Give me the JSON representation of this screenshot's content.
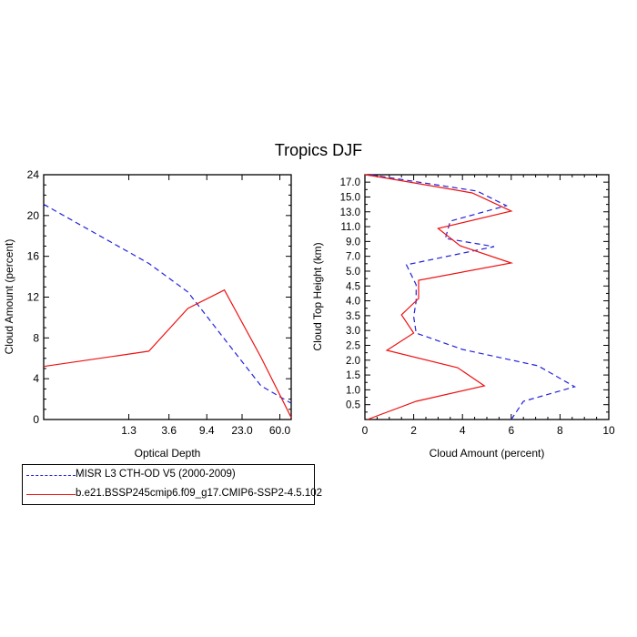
{
  "figure_title": "Tropics DJF",
  "colors": {
    "obs": "#2222dd",
    "model": "#ee1111"
  },
  "legend": [
    {
      "label": "MISR L3 CTH-OD V5 (2000-2009)",
      "color": "#2222dd",
      "dash": true
    },
    {
      "label": "b.e21.BSSP245cmip6.f09_g17.CMIP6-SSP2-4.5.102",
      "color": "#ee1111",
      "dash": false
    }
  ],
  "chart_data": [
    {
      "type": "line",
      "title": "",
      "xlabel": "Optical Depth",
      "ylabel": "Cloud Amount (percent)",
      "x_tick_labels": [
        "1.3",
        "3.6",
        "9.4",
        "23.0",
        "60.0"
      ],
      "x_values_tau": [
        0.15,
        1.3,
        3.6,
        9.4,
        23.0,
        60.0,
        80.0
      ],
      "ylim": [
        0,
        24
      ],
      "yticks": [
        0,
        4,
        8,
        12,
        16,
        20,
        24
      ],
      "series": [
        {
          "name": "MISR L3 CTH-OD V5 (2000-2009)",
          "values": [
            21.1,
            15.3,
            12.5,
            7.9,
            3.3,
            1.6
          ]
        },
        {
          "name": "b.e21.BSSP245cmip6.f09_g17.CMIP6-SSP2-4.5.102",
          "values": [
            5.2,
            6.7,
            10.9,
            12.7,
            6.1,
            0.2
          ]
        }
      ]
    },
    {
      "type": "line",
      "title": "",
      "xlabel": "Cloud Amount (percent)",
      "ylabel": "Cloud Top Height (km)",
      "xlim": [
        0,
        10
      ],
      "xticks": [
        0,
        2,
        4,
        6,
        8,
        10
      ],
      "y_tick_labels": [
        "0.5",
        "1.0",
        "1.5",
        "2.0",
        "2.5",
        "3.0",
        "3.5",
        "4.0",
        "4.5",
        "5.0",
        "7.0",
        "9.0",
        "11.0",
        "13.0",
        "15.0",
        "17.0"
      ],
      "series": [
        {
          "name": "MISR L3 CTH-OD V5 (2000-2009)",
          "values": [
            0,
            6.0,
            6.5,
            8.6,
            7.1,
            4.0,
            2.1,
            2.0,
            2.1,
            2.1,
            1.7,
            5.3,
            3.3,
            3.5,
            5.8,
            4.6,
            1.2,
            0.2
          ]
        },
        {
          "name": "b.e21.BSSP245cmip6.f09_g17.CMIP6-SSP2-4.5.102",
          "values": [
            0.1,
            2.1,
            4.9,
            3.8,
            0.9,
            2.0,
            1.5,
            2.2,
            2.2,
            6.0,
            3.9,
            3.0,
            6.0,
            4.4,
            0.5,
            0
          ]
        }
      ]
    }
  ]
}
